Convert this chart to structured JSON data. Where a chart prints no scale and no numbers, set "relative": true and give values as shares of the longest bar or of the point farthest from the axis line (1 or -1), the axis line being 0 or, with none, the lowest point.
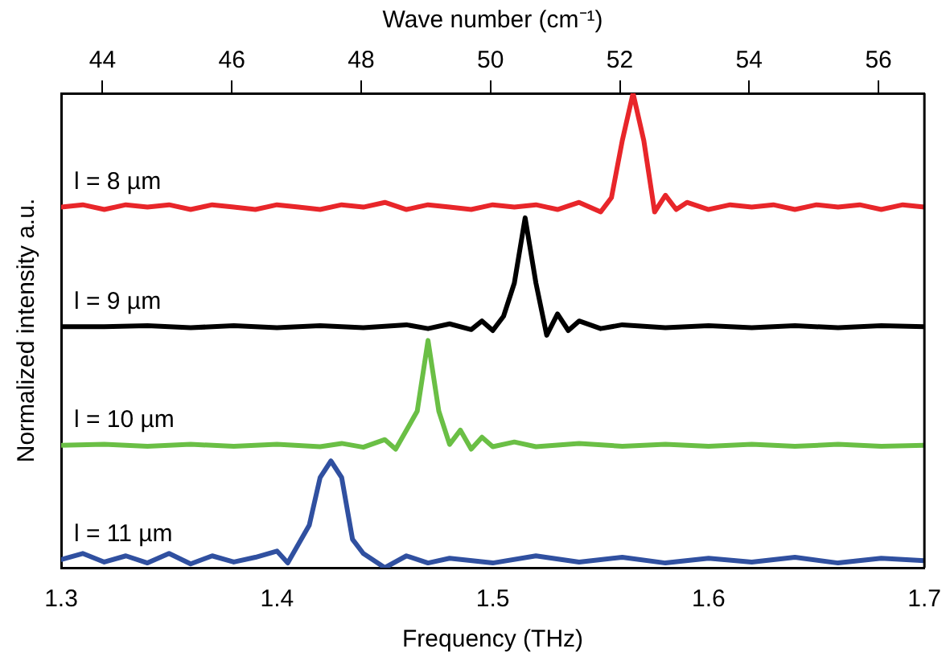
{
  "chart_data": {
    "type": "line",
    "relative": true,
    "xlabel": "Frequency (THz)",
    "ylabel": "Normalized intensity a.u.",
    "x2label": "Wave number (cm⁻¹)",
    "xlim": [
      1.3,
      1.7
    ],
    "xticks": [
      1.3,
      1.4,
      1.5,
      1.6,
      1.7
    ],
    "x2lim": [
      43.36,
      56.71
    ],
    "x2ticks": [
      44,
      46,
      48,
      50,
      52,
      54,
      56
    ],
    "grid": false,
    "legend": false,
    "marker": "none",
    "line_style": "solid",
    "series": [
      {
        "name": "l = 8 µm",
        "color": "#e8262a",
        "x": [
          1.3,
          1.31,
          1.32,
          1.33,
          1.34,
          1.35,
          1.36,
          1.37,
          1.38,
          1.39,
          1.4,
          1.41,
          1.42,
          1.43,
          1.44,
          1.45,
          1.46,
          1.47,
          1.48,
          1.49,
          1.5,
          1.51,
          1.52,
          1.53,
          1.54,
          1.55,
          1.555,
          1.56,
          1.565,
          1.57,
          1.575,
          1.58,
          1.585,
          1.59,
          1.6,
          1.61,
          1.62,
          1.63,
          1.64,
          1.65,
          1.66,
          1.67,
          1.68,
          1.69,
          1.7
        ],
        "values": [
          0.76,
          0.765,
          0.755,
          0.765,
          0.76,
          0.765,
          0.755,
          0.765,
          0.76,
          0.755,
          0.765,
          0.76,
          0.755,
          0.765,
          0.76,
          0.77,
          0.755,
          0.765,
          0.76,
          0.755,
          0.765,
          0.76,
          0.765,
          0.755,
          0.77,
          0.75,
          0.78,
          0.9,
          1.0,
          0.9,
          0.75,
          0.785,
          0.755,
          0.77,
          0.755,
          0.765,
          0.76,
          0.765,
          0.755,
          0.765,
          0.76,
          0.765,
          0.755,
          0.765,
          0.76
        ]
      },
      {
        "name": "l = 9 µm",
        "color": "#000000",
        "x": [
          1.3,
          1.32,
          1.34,
          1.36,
          1.38,
          1.4,
          1.42,
          1.44,
          1.46,
          1.47,
          1.48,
          1.49,
          1.495,
          1.5,
          1.505,
          1.51,
          1.515,
          1.52,
          1.525,
          1.53,
          1.535,
          1.54,
          1.55,
          1.56,
          1.58,
          1.6,
          1.62,
          1.64,
          1.66,
          1.68,
          1.7
        ],
        "values": [
          0.508,
          0.508,
          0.51,
          0.506,
          0.51,
          0.506,
          0.51,
          0.506,
          0.512,
          0.504,
          0.514,
          0.502,
          0.52,
          0.5,
          0.53,
          0.6,
          0.7375,
          0.6,
          0.49,
          0.535,
          0.5,
          0.52,
          0.504,
          0.512,
          0.506,
          0.51,
          0.506,
          0.51,
          0.506,
          0.51,
          0.508
        ]
      },
      {
        "name": "l = 10 µm",
        "color": "#6abf45",
        "x": [
          1.3,
          1.32,
          1.34,
          1.36,
          1.38,
          1.4,
          1.42,
          1.43,
          1.44,
          1.45,
          1.455,
          1.46,
          1.465,
          1.47,
          1.475,
          1.48,
          1.485,
          1.49,
          1.495,
          1.5,
          1.51,
          1.52,
          1.54,
          1.56,
          1.58,
          1.6,
          1.62,
          1.64,
          1.66,
          1.68,
          1.7
        ],
        "values": [
          0.258,
          0.26,
          0.256,
          0.26,
          0.256,
          0.26,
          0.255,
          0.262,
          0.254,
          0.27,
          0.25,
          0.29,
          0.33,
          0.479,
          0.33,
          0.26,
          0.29,
          0.25,
          0.275,
          0.255,
          0.265,
          0.255,
          0.262,
          0.256,
          0.26,
          0.256,
          0.26,
          0.256,
          0.26,
          0.256,
          0.258
        ]
      },
      {
        "name": "l = 11 µm",
        "color": "#3050a0",
        "x": [
          1.3,
          1.31,
          1.32,
          1.33,
          1.34,
          1.35,
          1.36,
          1.37,
          1.38,
          1.39,
          1.4,
          1.405,
          1.41,
          1.415,
          1.42,
          1.425,
          1.43,
          1.435,
          1.44,
          1.45,
          1.46,
          1.47,
          1.48,
          1.5,
          1.52,
          1.54,
          1.56,
          1.58,
          1.6,
          1.62,
          1.64,
          1.66,
          1.68,
          1.7
        ],
        "values": [
          0.017,
          0.03,
          0.012,
          0.025,
          0.01,
          0.03,
          0.008,
          0.025,
          0.012,
          0.022,
          0.035,
          0.01,
          0.05,
          0.09,
          0.19,
          0.225,
          0.19,
          0.06,
          0.03,
          0.0,
          0.025,
          0.01,
          0.02,
          0.01,
          0.025,
          0.012,
          0.022,
          0.01,
          0.02,
          0.012,
          0.022,
          0.01,
          0.02,
          0.015
        ]
      }
    ]
  }
}
